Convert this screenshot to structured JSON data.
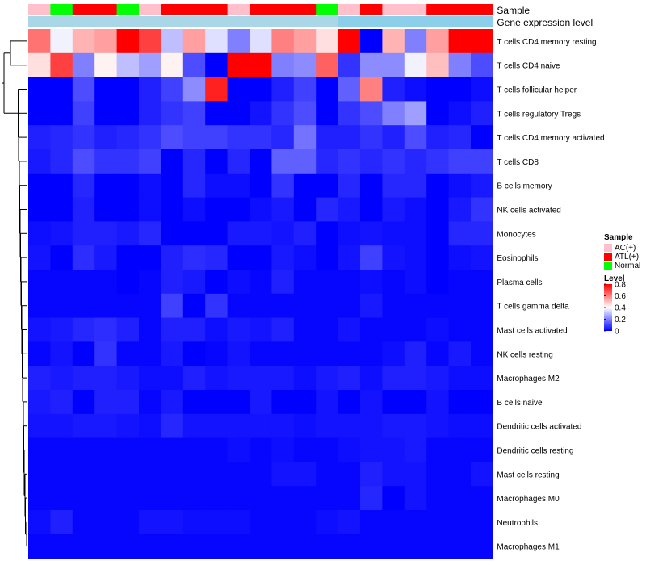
{
  "chart_data": {
    "type": "heatmap",
    "annotation_rows": [
      "Sample",
      "Gene expression level"
    ],
    "rows": [
      "T cells CD4 memory resting",
      "T cells CD4 naive",
      "T cells follicular helper",
      "T cells regulatory  Tregs",
      "T cells CD4 memory activated",
      "T cells CD8",
      "B cells memory",
      "NK cells activated",
      "Monocytes",
      "Eosinophils",
      "Plasma cells",
      "T cells gamma delta",
      "Mast cells activated",
      "NK cells resting",
      "Macrophages M2",
      "B cells naive",
      "Dendritic cells activated",
      "Dendritic cells resting",
      "Mast cells resting",
      "Macrophages M0",
      "Neutrophils",
      "Macrophages M1"
    ],
    "sample_groups": [
      "AC(+)",
      "Normal",
      "ATL(+)",
      "ATL(+)",
      "Normal",
      "AC(+)",
      "ATL(+)",
      "ATL(+)",
      "ATL(+)",
      "AC(+)",
      "ATL(+)",
      "ATL(+)",
      "ATL(+)",
      "Normal",
      "AC(+)",
      "ATL(+)",
      "AC(+)",
      "AC(+)",
      "ATL(+)",
      "ATL(+)",
      "ATL(+)"
    ],
    "gene_expression_level": [
      0.1,
      0.1,
      0.1,
      0.1,
      0.1,
      0.1,
      0.1,
      0.1,
      0.1,
      0.1,
      0.1,
      0.1,
      0.1,
      0.1,
      0.9,
      0.9,
      0.9,
      0.9,
      0.9,
      0.9,
      0.9
    ],
    "values": [
      [
        0.62,
        0.38,
        0.52,
        0.55,
        0.8,
        0.7,
        0.3,
        0.55,
        0.35,
        0.2,
        0.35,
        0.6,
        0.55,
        0.45,
        0.8,
        0.0,
        0.52,
        0.2,
        0.55,
        0.8,
        0.8
      ],
      [
        0.45,
        0.7,
        0.2,
        0.42,
        0.3,
        0.25,
        0.42,
        0.12,
        0.0,
        0.8,
        0.8,
        0.2,
        0.22,
        0.65,
        0.08,
        0.22,
        0.22,
        0.38,
        0.5,
        0.2,
        0.12
      ],
      [
        0.0,
        0.0,
        0.12,
        0.0,
        0.0,
        0.05,
        0.1,
        0.22,
        0.75,
        0.0,
        0.0,
        0.05,
        0.1,
        0.0,
        0.15,
        0.6,
        0.05,
        0.02,
        0.0,
        0.0,
        0.02
      ],
      [
        0.0,
        0.0,
        0.1,
        0.0,
        0.0,
        0.05,
        0.08,
        0.1,
        0.0,
        0.0,
        0.03,
        0.08,
        0.12,
        0.0,
        0.08,
        0.12,
        0.2,
        0.25,
        0.0,
        0.02,
        0.05
      ],
      [
        0.05,
        0.06,
        0.08,
        0.05,
        0.06,
        0.08,
        0.12,
        0.1,
        0.1,
        0.08,
        0.08,
        0.06,
        0.18,
        0.05,
        0.05,
        0.08,
        0.05,
        0.12,
        0.05,
        0.06,
        0.0
      ],
      [
        0.04,
        0.06,
        0.12,
        0.08,
        0.08,
        0.1,
        0.0,
        0.06,
        0.0,
        0.06,
        0.0,
        0.15,
        0.15,
        0.06,
        0.08,
        0.06,
        0.08,
        0.06,
        0.08,
        0.1,
        0.1
      ],
      [
        0.0,
        0.0,
        0.06,
        0.0,
        0.0,
        0.02,
        0.0,
        0.06,
        0.02,
        0.02,
        0.0,
        0.08,
        0.0,
        0.0,
        0.06,
        0.0,
        0.06,
        0.06,
        0.0,
        0.02,
        0.04
      ],
      [
        0.0,
        0.0,
        0.05,
        0.0,
        0.0,
        0.02,
        0.0,
        0.02,
        0.0,
        0.0,
        0.02,
        0.04,
        0.0,
        0.06,
        0.04,
        0.0,
        0.04,
        0.02,
        0.0,
        0.04,
        0.08
      ],
      [
        0.02,
        0.03,
        0.05,
        0.05,
        0.04,
        0.06,
        0.0,
        0.0,
        0.0,
        0.04,
        0.04,
        0.03,
        0.05,
        0.0,
        0.02,
        0.03,
        0.02,
        0.02,
        0.0,
        0.06,
        0.06
      ],
      [
        0.03,
        0.0,
        0.07,
        0.04,
        0.0,
        0.0,
        0.05,
        0.07,
        0.06,
        0.0,
        0.0,
        0.04,
        0.02,
        0.0,
        0.03,
        0.1,
        0.03,
        0.02,
        0.0,
        0.02,
        0.03
      ],
      [
        0.01,
        0.01,
        0.01,
        0.01,
        0.0,
        0.01,
        0.05,
        0.04,
        0.0,
        0.02,
        0.01,
        0.05,
        0.01,
        0.01,
        0.01,
        0.02,
        0.01,
        0.02,
        0.0,
        0.01,
        0.01
      ],
      [
        0.01,
        0.01,
        0.01,
        0.01,
        0.01,
        0.01,
        0.1,
        0.0,
        0.08,
        0.01,
        0.01,
        0.01,
        0.01,
        0.01,
        0.01,
        0.04,
        0.01,
        0.01,
        0.01,
        0.01,
        0.01
      ],
      [
        0.03,
        0.04,
        0.06,
        0.07,
        0.05,
        0.01,
        0.05,
        0.05,
        0.02,
        0.04,
        0.03,
        0.05,
        0.01,
        0.01,
        0.03,
        0.01,
        0.01,
        0.01,
        0.02,
        0.01,
        0.01
      ],
      [
        0.01,
        0.03,
        0.0,
        0.08,
        0.01,
        0.01,
        0.04,
        0.0,
        0.01,
        0.03,
        0.01,
        0.01,
        0.01,
        0.01,
        0.01,
        0.01,
        0.02,
        0.05,
        0.01,
        0.04,
        0.01
      ],
      [
        0.05,
        0.04,
        0.05,
        0.05,
        0.04,
        0.02,
        0.02,
        0.05,
        0.03,
        0.04,
        0.04,
        0.04,
        0.02,
        0.04,
        0.05,
        0.02,
        0.05,
        0.05,
        0.04,
        0.02,
        0.02
      ],
      [
        0.04,
        0.05,
        0.0,
        0.05,
        0.05,
        0.01,
        0.04,
        0.0,
        0.0,
        0.0,
        0.04,
        0.0,
        0.0,
        0.03,
        0.0,
        0.03,
        0.0,
        0.0,
        0.03,
        0.0,
        0.0
      ],
      [
        0.03,
        0.03,
        0.04,
        0.04,
        0.03,
        0.02,
        0.06,
        0.03,
        0.03,
        0.03,
        0.03,
        0.03,
        0.02,
        0.03,
        0.03,
        0.03,
        0.04,
        0.04,
        0.03,
        0.02,
        0.02
      ],
      [
        0.01,
        0.01,
        0.01,
        0.01,
        0.01,
        0.01,
        0.01,
        0.01,
        0.01,
        0.02,
        0.01,
        0.02,
        0.01,
        0.01,
        0.02,
        0.03,
        0.03,
        0.04,
        0.01,
        0.01,
        0.01
      ],
      [
        0.01,
        0.01,
        0.01,
        0.01,
        0.01,
        0.01,
        0.01,
        0.01,
        0.01,
        0.01,
        0.01,
        0.03,
        0.03,
        0.01,
        0.01,
        0.05,
        0.03,
        0.03,
        0.01,
        0.01,
        0.03
      ],
      [
        0.01,
        0.01,
        0.01,
        0.01,
        0.01,
        0.01,
        0.01,
        0.01,
        0.01,
        0.01,
        0.01,
        0.01,
        0.01,
        0.01,
        0.01,
        0.06,
        0.0,
        0.03,
        0.01,
        0.01,
        0.01
      ],
      [
        0.02,
        0.05,
        0.01,
        0.01,
        0.01,
        0.03,
        0.03,
        0.02,
        0.02,
        0.02,
        0.01,
        0.01,
        0.01,
        0.02,
        0.03,
        0.01,
        0.01,
        0.01,
        0.01,
        0.01,
        0.01
      ],
      [
        0.01,
        0.01,
        0.01,
        0.01,
        0.01,
        0.01,
        0.01,
        0.01,
        0.01,
        0.01,
        0.01,
        0.01,
        0.01,
        0.01,
        0.01,
        0.01,
        0.01,
        0.01,
        0.01,
        0.01,
        0.01
      ]
    ],
    "color_scale": {
      "low": "#0000ff",
      "mid": "#ffffff",
      "high": "#ff0000",
      "min": 0,
      "mid_value": 0.4,
      "max": 0.8
    },
    "sample_colors": {
      "AC(+)": "#ffc0cb",
      "ATL(+)": "#ff0000",
      "Normal": "#00ff00"
    },
    "gene_level_colors": {
      "low": "#add8e6",
      "high": "#87ceeb"
    },
    "legend": {
      "sample_title": "Sample",
      "sample_entries": [
        "AC(+)",
        "ATL(+)",
        "Normal"
      ],
      "level_title": "Level",
      "level_ticks": [
        0.8,
        0.6,
        0.4,
        0.2,
        0
      ]
    },
    "row_dendrogram": true,
    "legend_position": "right"
  }
}
